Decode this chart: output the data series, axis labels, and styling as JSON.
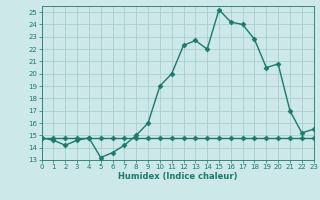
{
  "xlabel": "Humidex (Indice chaleur)",
  "ylabel": "",
  "bg_color": "#cce8e8",
  "line_color": "#1a7a6e",
  "grid_color": "#aacfcf",
  "x": [
    0,
    1,
    2,
    3,
    4,
    5,
    6,
    7,
    8,
    9,
    10,
    11,
    12,
    13,
    14,
    15,
    16,
    17,
    18,
    19,
    20,
    21,
    22,
    23
  ],
  "y_upper": [
    14.8,
    14.6,
    14.2,
    14.6,
    14.8,
    13.2,
    13.6,
    14.2,
    15.0,
    16.0,
    19.0,
    20.0,
    22.3,
    22.7,
    22.0,
    25.2,
    24.2,
    24.0,
    22.8,
    20.5,
    20.8,
    17.0,
    15.2,
    15.5
  ],
  "y_lower": [
    14.8,
    14.8,
    14.8,
    14.8,
    14.8,
    14.8,
    14.8,
    14.8,
    14.8,
    14.8,
    14.8,
    14.8,
    14.8,
    14.8,
    14.8,
    14.8,
    14.8,
    14.8,
    14.8,
    14.8,
    14.8,
    14.8,
    14.8,
    14.8
  ],
  "xlim": [
    0,
    23
  ],
  "ylim": [
    13,
    25.5
  ],
  "yticks": [
    13,
    14,
    15,
    16,
    17,
    18,
    19,
    20,
    21,
    22,
    23,
    24,
    25
  ],
  "xticks": [
    0,
    1,
    2,
    3,
    4,
    5,
    6,
    7,
    8,
    9,
    10,
    11,
    12,
    13,
    14,
    15,
    16,
    17,
    18,
    19,
    20,
    21,
    22,
    23
  ],
  "marker": "D",
  "marker_size": 2.5,
  "linewidth": 1.0
}
